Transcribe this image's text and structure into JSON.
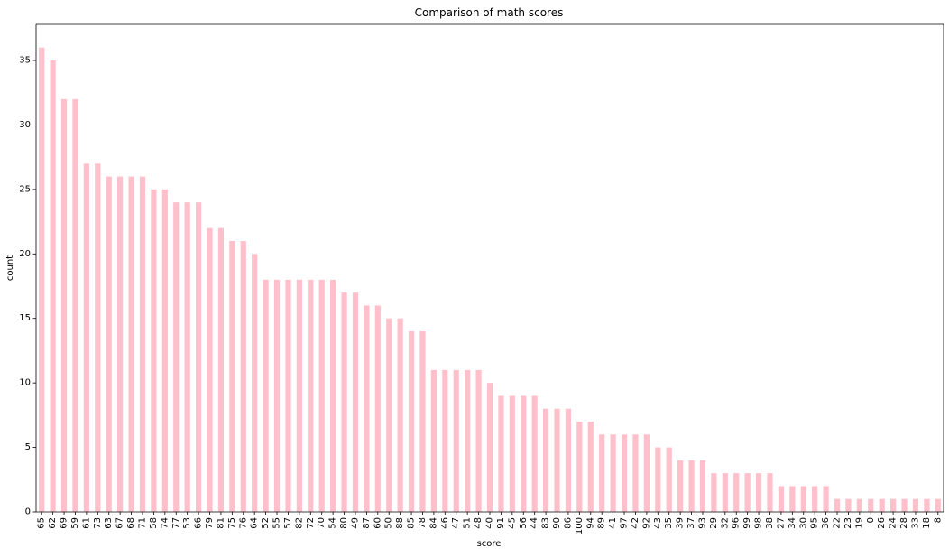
{
  "chart_data": {
    "type": "bar",
    "title": "Comparison of math scores",
    "xlabel": "score",
    "ylabel": "count",
    "ylim": [
      0,
      37.8
    ],
    "yticks": [
      0,
      5,
      10,
      15,
      20,
      25,
      30,
      35
    ],
    "grid": false,
    "legend": "none",
    "bar_color": "#ffc0cb",
    "categories": [
      "65",
      "62",
      "69",
      "59",
      "61",
      "73",
      "63",
      "67",
      "68",
      "71",
      "58",
      "74",
      "77",
      "53",
      "66",
      "79",
      "81",
      "75",
      "76",
      "64",
      "52",
      "55",
      "57",
      "82",
      "72",
      "70",
      "54",
      "80",
      "49",
      "87",
      "60",
      "50",
      "88",
      "85",
      "78",
      "84",
      "46",
      "47",
      "51",
      "48",
      "40",
      "91",
      "45",
      "56",
      "44",
      "83",
      "90",
      "86",
      "100",
      "94",
      "89",
      "41",
      "97",
      "42",
      "92",
      "43",
      "35",
      "39",
      "37",
      "93",
      "29",
      "32",
      "96",
      "99",
      "98",
      "38",
      "27",
      "34",
      "30",
      "95",
      "36",
      "22",
      "23",
      "19",
      "0",
      "26",
      "24",
      "28",
      "33",
      "18",
      "8"
    ],
    "values": [
      36,
      35,
      32,
      32,
      27,
      27,
      26,
      26,
      26,
      26,
      25,
      25,
      24,
      24,
      24,
      22,
      22,
      21,
      21,
      20,
      18,
      18,
      18,
      18,
      18,
      18,
      18,
      17,
      17,
      16,
      16,
      15,
      15,
      14,
      14,
      11,
      11,
      11,
      11,
      11,
      10,
      9,
      9,
      9,
      9,
      8,
      8,
      8,
      7,
      7,
      6,
      6,
      6,
      6,
      6,
      5,
      5,
      4,
      4,
      4,
      3,
      3,
      3,
      3,
      3,
      3,
      2,
      2,
      2,
      2,
      2,
      1,
      1,
      1,
      1,
      1,
      1,
      1,
      1,
      1,
      1
    ]
  }
}
